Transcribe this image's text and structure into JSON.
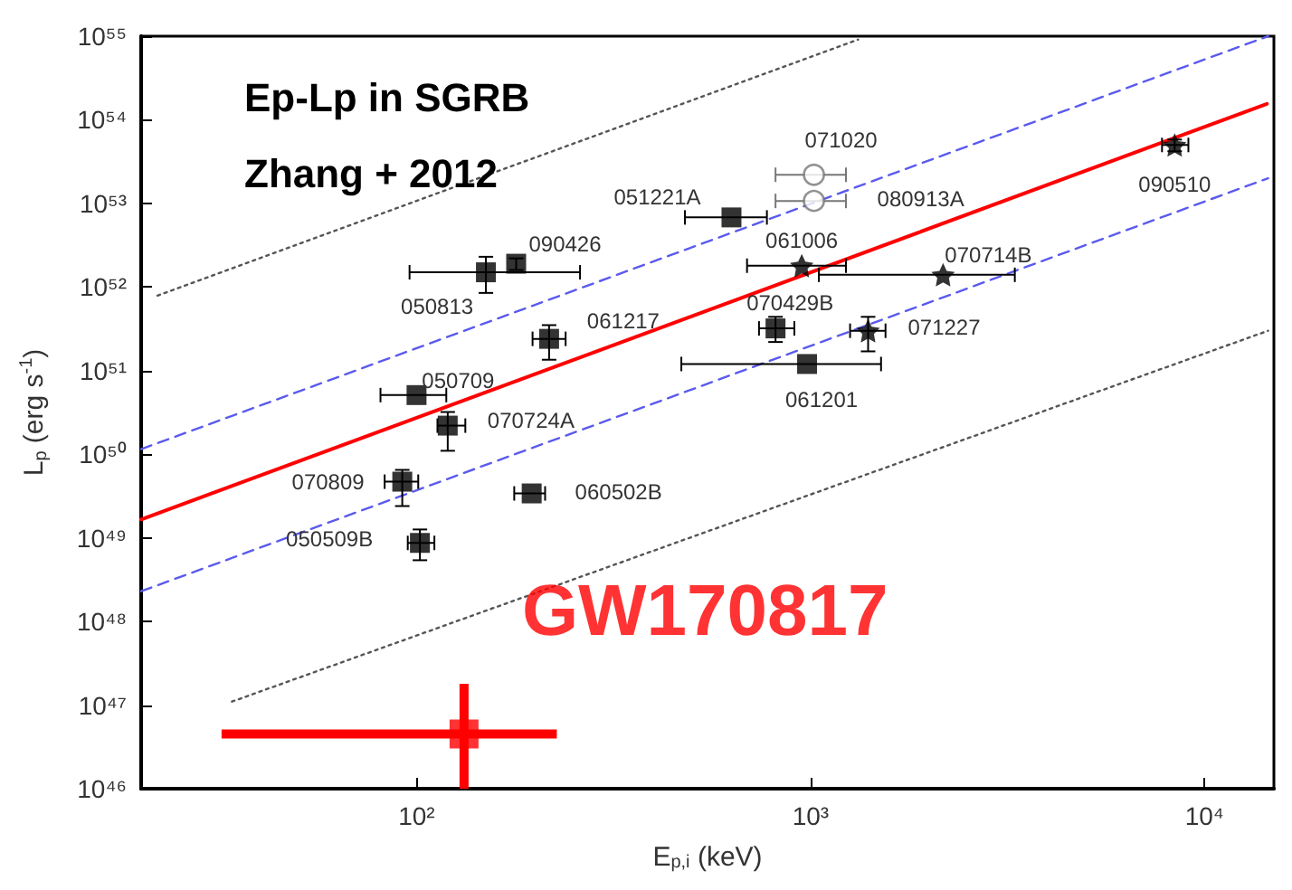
{
  "chart_data": {
    "type": "scatter",
    "title": "Ep-Lp in SGRB",
    "subtitle": "Zhang + 2012",
    "xlabel": "E$_{p,i}$ (keV)",
    "ylabel": "L$_{p}$ (erg s$^{-1}$)",
    "log": "xy",
    "grid": false,
    "legend": false,
    "xlim": [
      20,
      15000
    ],
    "xticks": [
      {
        "value": 100,
        "label": "10²"
      },
      {
        "value": 1000,
        "label": "10³"
      },
      {
        "value": 10000,
        "label": "10⁴"
      }
    ],
    "ylim": [
      1e+46,
      1e+55
    ],
    "yticks": [
      {
        "value": 1e+46,
        "label": "10⁴⁶"
      },
      {
        "value": 1e+47,
        "label": "10⁴⁷"
      },
      {
        "value": 1e+48,
        "label": "10⁴⁸"
      },
      {
        "value": 1e+49,
        "label": "10⁴⁹"
      },
      {
        "value": 1e+50,
        "label": "10⁵⁰"
      },
      {
        "value": 1e+51,
        "label": "10⁵¹"
      },
      {
        "value": 1e+52,
        "label": "10⁵²"
      },
      {
        "value": 1e+53,
        "label": "10⁵³"
      },
      {
        "value": 1e+54,
        "label": "10⁵⁴"
      },
      {
        "value": 1e+55,
        "label": "10⁵⁵"
      }
    ],
    "series": [
      {
        "marker": "square",
        "color": "#000000",
        "x": [
          150,
          179,
          217,
          100,
          120,
          92,
          102,
          196,
          630,
          815,
          980
        ],
        "values": [
          1.5e+52,
          1.9e+52,
          2.4e+51,
          5.1e+50,
          2.2e+50,
          4.7e+49,
          8.7e+48,
          3.4e+49,
          6.8e+52,
          3.2e+51,
          1.2e+51
        ],
        "xerrors": [
          [
            96,
            260
          ],
          null,
          [
            197,
            239
          ],
          [
            81,
            119
          ],
          [
            113,
            133
          ],
          [
            83,
            101
          ],
          [
            95,
            111
          ],
          [
            177,
            212
          ],
          [
            480,
            775
          ],
          [
            740,
            910
          ],
          [
            470,
            1510
          ]
        ],
        "errors": [
          [
            8.5e+51,
            2.3e+52
          ],
          [
            1.6e+52,
            2.2e+52
          ],
          [
            1.35e+51,
            3.5e+51
          ],
          null,
          [
            1.1e+50,
            3.2e+50
          ],
          [
            2.4e+49,
            6.5e+49
          ],
          [
            5.4e+48,
            1.26e+49
          ],
          null,
          null,
          [
            2.2e+51,
            4.4e+51
          ],
          null
        ]
      },
      {
        "marker": "star",
        "color": "#000000",
        "x": [
          950,
          2170,
          1400,
          8400
        ],
        "values": [
          1.8e+52,
          1.4e+52,
          3e+51,
          5e+53
        ],
        "xerrors": [
          [
            690,
            1230
          ],
          [
            1050,
            3300
          ],
          [
            1260,
            1550
          ],
          [
            7800,
            9100
          ]
        ],
        "errors": [
          null,
          null,
          [
            1.7e+51,
            4.4e+51
          ],
          [
            4.2e+53,
            5.8e+53
          ]
        ]
      },
      {
        "marker": "circle",
        "color": "#777777",
        "x": [
          1020,
          1020
        ],
        "values": [
          2.2e+53,
          1.07e+53
        ],
        "xerrors": [
          [
            815,
            1230
          ],
          [
            815,
            1230
          ]
        ]
      },
      {
        "marker": "square",
        "name": "GW170817",
        "color": "#ff0000",
        "x": [
          132
        ],
        "values": [
          4.5e+46
        ],
        "xerrors": [
          [
            32,
            227
          ]
        ],
        "errors": [
          [
            1e+46,
            1.8e+47
          ]
        ]
      },
      {
        "type": "line",
        "line_style": "solid",
        "marker": "none",
        "color": "#ff0000",
        "x": [
          20,
          14400
        ],
        "values": [
          1.66e+49,
          1.55e+54
        ]
      },
      {
        "type": "line",
        "line_style": "dashed",
        "marker": "none",
        "color": "#5a5aee",
        "x": [
          20,
          14500
        ],
        "values": [
          1.15e+50,
          1e+55
        ]
      },
      {
        "type": "line",
        "line_style": "dashed",
        "marker": "none",
        "color": "#5a5aee",
        "x": [
          20,
          14500
        ],
        "values": [
          2.3e+48,
          2e+53
        ]
      },
      {
        "type": "line",
        "line_style": "dotted",
        "marker": "none",
        "color": "#555555",
        "x": [
          22,
          1320
        ],
        "values": [
          7.9e+51,
          9.1e+54
        ]
      },
      {
        "type": "line",
        "line_style": "dotted",
        "marker": "none",
        "color": "#555555",
        "x": [
          34,
          14500
        ],
        "values": [
          1.1e+47,
          3e+51
        ]
      }
    ],
    "annotations": [
      {
        "text": "071020",
        "x": 1020,
        "y": 2.2e+53
      },
      {
        "text": "051221A",
        "x": 630,
        "y": 6.8e+52
      },
      {
        "text": "080913A",
        "x": 1020,
        "y": 1.07e+53
      },
      {
        "text": "090510",
        "x": 8400,
        "y": 5e+53
      },
      {
        "text": "061006",
        "x": 950,
        "y": 1.8e+52
      },
      {
        "text": "070714B",
        "x": 2170,
        "y": 1.4e+52
      },
      {
        "text": "070429B",
        "x": 815,
        "y": 3.2e+51
      },
      {
        "text": "071227",
        "x": 1400,
        "y": 3e+51
      },
      {
        "text": "061201",
        "x": 980,
        "y": 1.2e+51
      },
      {
        "text": "090426",
        "x": 179,
        "y": 1.9e+52
      },
      {
        "text": "050813",
        "x": 150,
        "y": 1.5e+52
      },
      {
        "text": "061217",
        "x": 217,
        "y": 2.4e+51
      },
      {
        "text": "050709",
        "x": 100,
        "y": 5.1e+50
      },
      {
        "text": "070724A",
        "x": 120,
        "y": 2.2e+50
      },
      {
        "text": "070809",
        "x": 92,
        "y": 4.7e+49
      },
      {
        "text": "050509B",
        "x": 102,
        "y": 8.7e+48
      },
      {
        "text": "060502B",
        "x": 196,
        "y": 3.4e+49
      }
    ]
  }
}
